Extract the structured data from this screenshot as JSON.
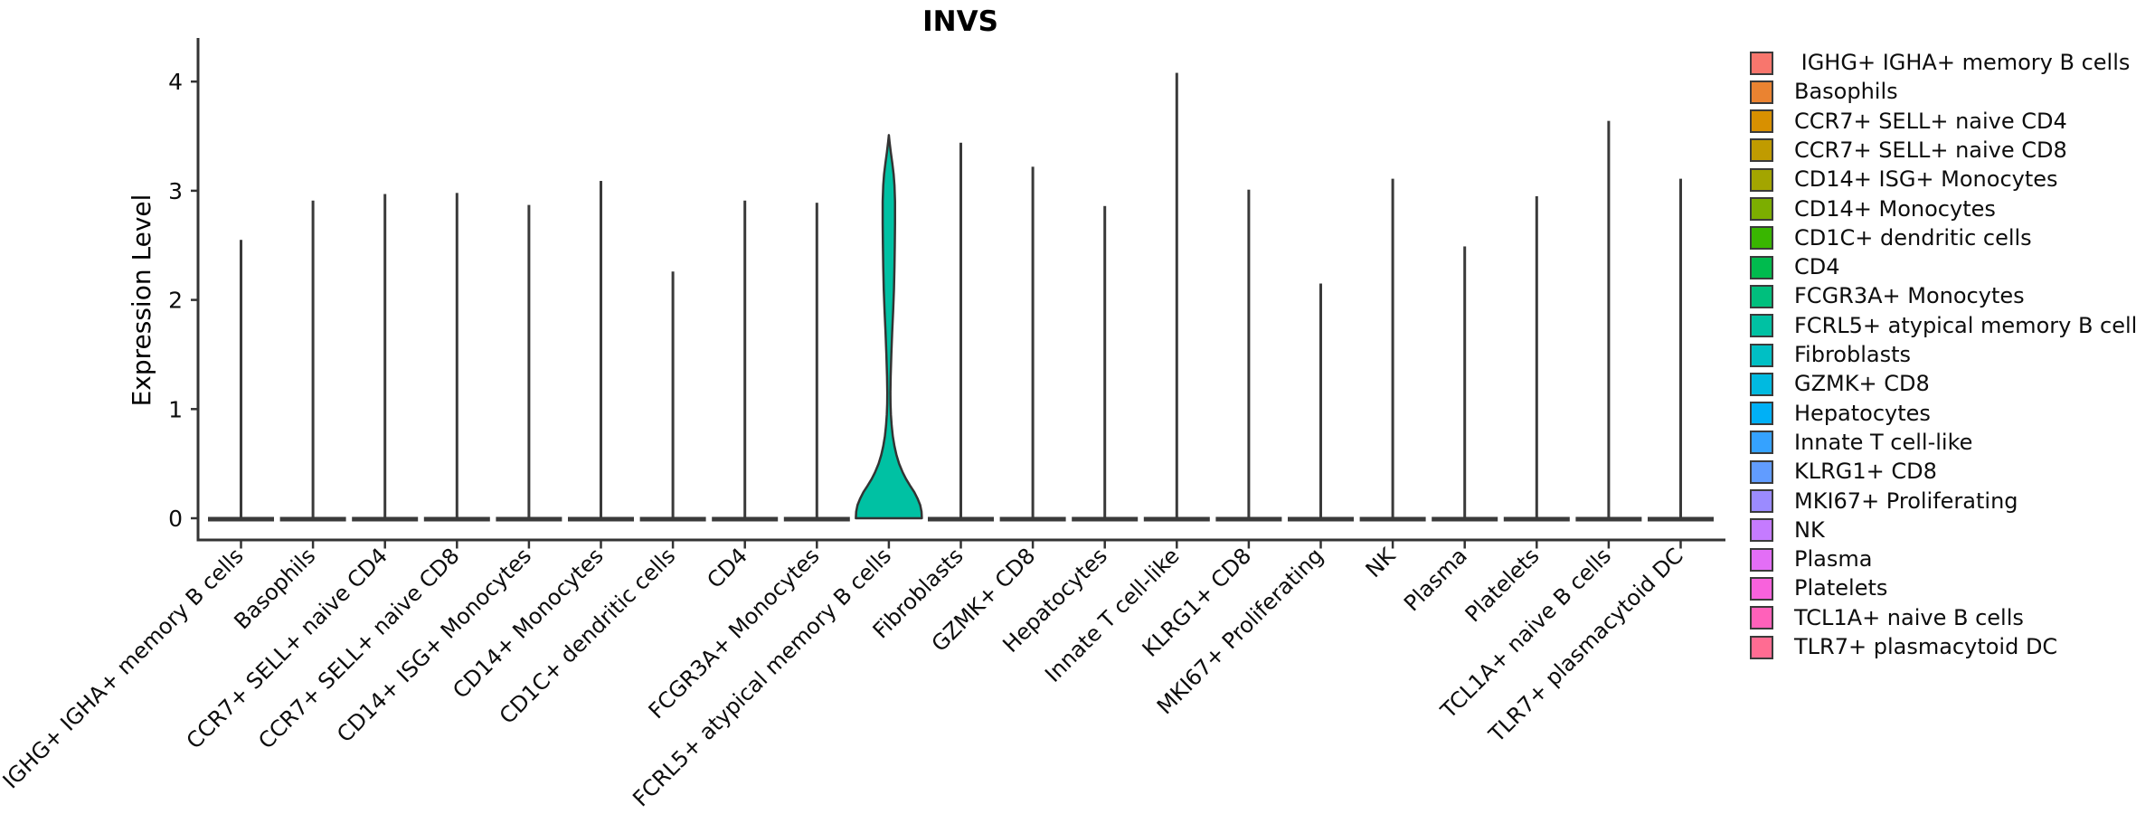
{
  "title": "INVS",
  "axes": {
    "y_label": "Expression Level",
    "y_tick_labels": [
      "0",
      "1",
      "2",
      "3",
      "4"
    ]
  },
  "chart_data": {
    "type": "violin",
    "title": "INVS",
    "xlabel": "",
    "ylabel": "Expression Level",
    "grid": false,
    "legend_position": "right",
    "y_ticks": [
      0,
      1,
      2,
      3,
      4
    ],
    "ylim": [
      -0.2,
      4.4
    ],
    "categories": [
      " IGHG+ IGHA+ memory B cells",
      "Basophils",
      "CCR7+ SELL+ naive CD4",
      "CCR7+ SELL+ naive CD8",
      "CD14+ ISG+ Monocytes",
      "CD14+ Monocytes",
      "CD1C+ dendritic cells",
      "CD4",
      "FCGR3A+ Monocytes",
      "FCRL5+ atypical memory B cells",
      "Fibroblasts",
      "GZMK+ CD8",
      "Hepatocytes",
      "Innate T cell-like",
      "KLRG1+ CD8",
      "MKI67+ Proliferating",
      "NK",
      "Plasma",
      "Platelets",
      "TCL1A+ naive B cells",
      "TLR7+ plasmacytoid DC"
    ],
    "colors": [
      "#F8766D",
      "#EA8331",
      "#D89000",
      "#C09B00",
      "#A3A500",
      "#7CAE00",
      "#39B600",
      "#00BB4E",
      "#00BF7D",
      "#00C1A3",
      "#00BFC4",
      "#00BAE0",
      "#00B0F6",
      "#35A2FF",
      "#619CFF",
      "#9B8BFF",
      "#C57BFF",
      "#E36EF6",
      "#F862DC",
      "#FF61BA",
      "#FF6C92"
    ],
    "max_values": [
      2.55,
      2.91,
      2.97,
      2.98,
      2.87,
      3.09,
      2.26,
      2.91,
      2.89,
      3.51,
      3.44,
      3.22,
      2.86,
      4.08,
      3.01,
      2.15,
      3.11,
      2.49,
      2.95,
      3.64,
      3.11
    ],
    "baseline_value": 0,
    "expressed_violin": {
      "category": "FCRL5+ atypical memory B cells",
      "index": 9,
      "fill": "#00C1A3",
      "peak_value": 3.51,
      "profile": [
        [
          0.0,
          1.0
        ],
        [
          0.06,
          0.99
        ],
        [
          0.12,
          0.95
        ],
        [
          0.18,
          0.87
        ],
        [
          0.24,
          0.77
        ],
        [
          0.3,
          0.64
        ],
        [
          0.36,
          0.52
        ],
        [
          0.42,
          0.42
        ],
        [
          0.5,
          0.31
        ],
        [
          0.58,
          0.23
        ],
        [
          0.66,
          0.17
        ],
        [
          0.75,
          0.12
        ],
        [
          0.85,
          0.085
        ],
        [
          0.95,
          0.062
        ],
        [
          1.05,
          0.05
        ],
        [
          1.15,
          0.047
        ],
        [
          1.3,
          0.055
        ],
        [
          1.5,
          0.075
        ],
        [
          1.7,
          0.1
        ],
        [
          1.9,
          0.13
        ],
        [
          2.1,
          0.155
        ],
        [
          2.3,
          0.17
        ],
        [
          2.5,
          0.18
        ],
        [
          2.7,
          0.187
        ],
        [
          2.9,
          0.187
        ],
        [
          3.05,
          0.17
        ],
        [
          3.15,
          0.145
        ],
        [
          3.25,
          0.105
        ],
        [
          3.35,
          0.06
        ],
        [
          3.45,
          0.02
        ],
        [
          3.51,
          0.0
        ]
      ]
    }
  }
}
